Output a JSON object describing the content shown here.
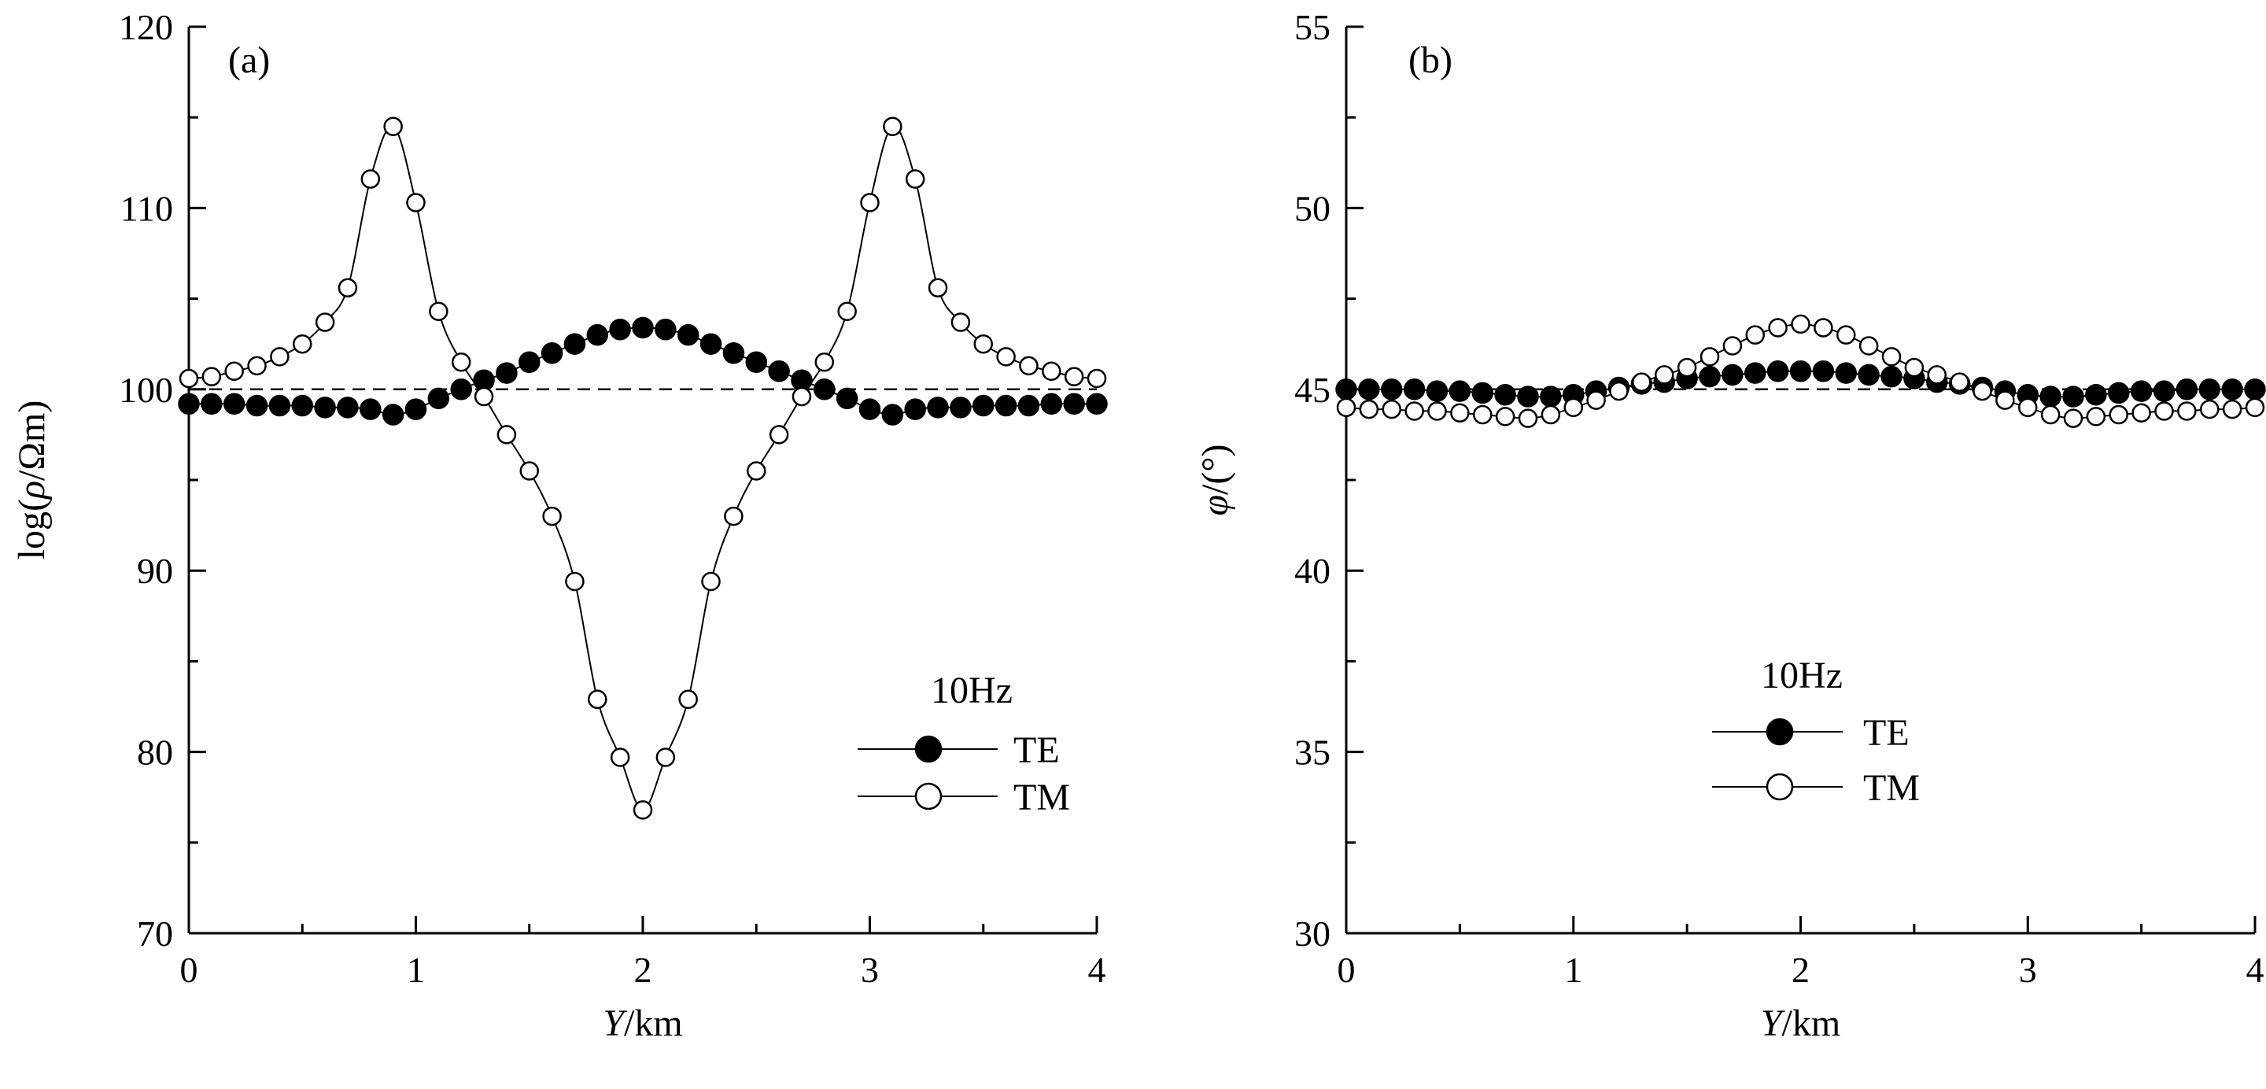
{
  "chart_data": [
    {
      "type": "line",
      "panel_label": "(a)",
      "xlabel_italic": "Y",
      "xlabel_rest": "/km",
      "ylabel_pre": "log(",
      "ylabel_italic": "ρ",
      "ylabel_post": "/Ωm)",
      "xlim": [
        0,
        4
      ],
      "ylim": [
        70,
        120
      ],
      "x_ticks": [
        0,
        1,
        2,
        3,
        4
      ],
      "y_ticks": [
        70,
        80,
        90,
        100,
        110,
        120
      ],
      "reference_line": 100,
      "legend_title": "10Hz",
      "legend_placement": "bottom-right",
      "x": [
        0,
        0.1,
        0.2,
        0.3,
        0.4,
        0.5,
        0.6,
        0.7,
        0.8,
        0.9,
        1.0,
        1.1,
        1.2,
        1.3,
        1.4,
        1.5,
        1.6,
        1.7,
        1.8,
        1.9,
        2.0,
        2.1,
        2.2,
        2.3,
        2.4,
        2.5,
        2.6,
        2.7,
        2.8,
        2.9,
        3.0,
        3.1,
        3.2,
        3.3,
        3.4,
        3.5,
        3.6,
        3.7,
        3.8,
        3.9,
        4.0
      ],
      "series": [
        {
          "name": "TE",
          "marker": "filled",
          "values": [
            99.2,
            99.2,
            99.2,
            99.1,
            99.1,
            99.1,
            99.0,
            99.0,
            98.9,
            98.6,
            98.9,
            99.5,
            100.0,
            100.5,
            100.9,
            101.5,
            102.0,
            102.5,
            103.0,
            103.3,
            103.4,
            103.3,
            103.0,
            102.5,
            102.0,
            101.5,
            101.0,
            100.5,
            100.0,
            99.5,
            98.9,
            98.6,
            98.9,
            99.0,
            99.0,
            99.1,
            99.1,
            99.1,
            99.2,
            99.2,
            99.2
          ]
        },
        {
          "name": "TM",
          "marker": "open",
          "values": [
            100.6,
            100.7,
            101.0,
            101.3,
            101.8,
            102.5,
            103.7,
            105.6,
            111.6,
            114.5,
            110.3,
            104.3,
            101.5,
            99.6,
            97.5,
            95.5,
            93.0,
            89.4,
            82.9,
            79.7,
            76.8,
            79.7,
            82.9,
            89.4,
            93.0,
            95.5,
            97.5,
            99.6,
            101.5,
            104.3,
            110.3,
            114.5,
            111.6,
            105.6,
            103.7,
            102.5,
            101.8,
            101.3,
            101.0,
            100.7,
            100.6
          ]
        }
      ]
    },
    {
      "type": "line",
      "panel_label": "(b)",
      "xlabel_italic": "Y",
      "xlabel_rest": "/km",
      "ylabel_pre": "",
      "ylabel_italic": "φ",
      "ylabel_post": "/(°)",
      "xlim": [
        0,
        4
      ],
      "ylim": [
        30,
        55
      ],
      "x_ticks": [
        0,
        1,
        2,
        3,
        4
      ],
      "y_ticks": [
        30,
        35,
        40,
        45,
        50,
        55
      ],
      "reference_line": 45,
      "legend_title": "10Hz",
      "legend_placement": "lower-center",
      "x": [
        0,
        0.1,
        0.2,
        0.3,
        0.4,
        0.5,
        0.6,
        0.7,
        0.8,
        0.9,
        1.0,
        1.1,
        1.2,
        1.3,
        1.4,
        1.5,
        1.6,
        1.7,
        1.8,
        1.9,
        2.0,
        2.1,
        2.2,
        2.3,
        2.4,
        2.5,
        2.6,
        2.7,
        2.8,
        2.9,
        3.0,
        3.1,
        3.2,
        3.3,
        3.4,
        3.5,
        3.6,
        3.7,
        3.8,
        3.9,
        4.0
      ],
      "series": [
        {
          "name": "TE",
          "marker": "filled",
          "values": [
            45.0,
            45.0,
            45.0,
            45.0,
            44.95,
            44.95,
            44.9,
            44.85,
            44.8,
            44.8,
            44.85,
            44.95,
            45.05,
            45.15,
            45.2,
            45.3,
            45.35,
            45.4,
            45.45,
            45.5,
            45.5,
            45.5,
            45.45,
            45.4,
            45.35,
            45.3,
            45.2,
            45.15,
            45.05,
            44.95,
            44.85,
            44.8,
            44.8,
            44.85,
            44.9,
            44.95,
            44.95,
            45.0,
            45.0,
            45.0,
            45.0
          ]
        },
        {
          "name": "TM",
          "marker": "open",
          "values": [
            44.5,
            44.45,
            44.45,
            44.4,
            44.4,
            44.35,
            44.3,
            44.25,
            44.2,
            44.3,
            44.5,
            44.7,
            44.95,
            45.2,
            45.4,
            45.6,
            45.9,
            46.2,
            46.5,
            46.7,
            46.8,
            46.7,
            46.5,
            46.2,
            45.9,
            45.6,
            45.4,
            45.2,
            44.95,
            44.7,
            44.5,
            44.3,
            44.2,
            44.25,
            44.3,
            44.35,
            44.4,
            44.4,
            44.45,
            44.45,
            44.5
          ]
        }
      ]
    }
  ]
}
